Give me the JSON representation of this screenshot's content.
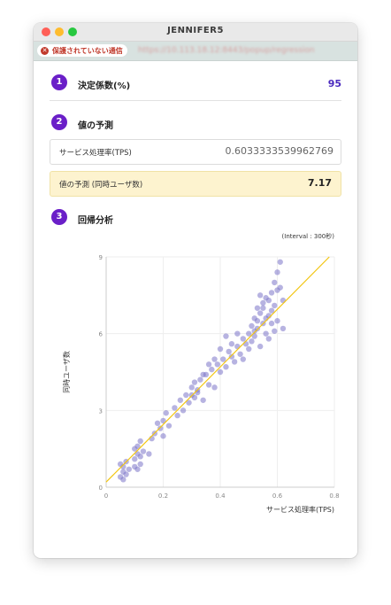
{
  "window": {
    "title": "JENNIFER5",
    "insecure_label": "保護されていない通信",
    "url": "https://10.113.18.12:8443/popup/regression"
  },
  "sections": {
    "r2": {
      "number": "1",
      "title": "決定係数(%)",
      "value": "95"
    },
    "prediction": {
      "number": "2",
      "title": "値の予測",
      "input_label": "サービス処理率(TPS)",
      "input_value": "0.6033333539962769",
      "result_label": "値の予測 (同時ユーザ数)",
      "result_value": "7.17"
    },
    "regression": {
      "number": "3",
      "title": "回帰分析",
      "interval": "(Interval : 300秒)"
    }
  },
  "chart_data": {
    "type": "scatter",
    "xlabel": "サービス処理率(TPS)",
    "ylabel": "同時ユーザ数",
    "xlim": [
      0,
      0.8
    ],
    "ylim": [
      0,
      9
    ],
    "xticks": [
      "0",
      "0.2",
      "0.4",
      "0.6",
      "0.8"
    ],
    "yticks": [
      "0",
      "3",
      "6",
      "9"
    ],
    "grid": true,
    "point_color": "#7b74c8",
    "line_color": "#f2c511",
    "regression_line": {
      "x": [
        0,
        0.8
      ],
      "y": [
        0.2,
        9.2
      ]
    },
    "points": [
      [
        0.05,
        0.4
      ],
      [
        0.06,
        0.6
      ],
      [
        0.06,
        0.8
      ],
      [
        0.07,
        0.5
      ],
      [
        0.05,
        0.9
      ],
      [
        0.07,
        1.0
      ],
      [
        0.06,
        0.3
      ],
      [
        0.08,
        0.7
      ],
      [
        0.1,
        0.8
      ],
      [
        0.1,
        1.1
      ],
      [
        0.11,
        1.3
      ],
      [
        0.11,
        1.6
      ],
      [
        0.12,
        1.2
      ],
      [
        0.12,
        0.9
      ],
      [
        0.1,
        1.5
      ],
      [
        0.11,
        0.7
      ],
      [
        0.12,
        1.8
      ],
      [
        0.13,
        1.4
      ],
      [
        0.15,
        1.3
      ],
      [
        0.16,
        1.9
      ],
      [
        0.17,
        2.1
      ],
      [
        0.18,
        2.5
      ],
      [
        0.19,
        2.3
      ],
      [
        0.2,
        2.6
      ],
      [
        0.2,
        2.0
      ],
      [
        0.21,
        2.9
      ],
      [
        0.22,
        2.4
      ],
      [
        0.24,
        3.1
      ],
      [
        0.25,
        2.8
      ],
      [
        0.26,
        3.4
      ],
      [
        0.27,
        3.0
      ],
      [
        0.28,
        3.6
      ],
      [
        0.29,
        3.3
      ],
      [
        0.3,
        3.9
      ],
      [
        0.31,
        3.5
      ],
      [
        0.31,
        4.1
      ],
      [
        0.32,
        3.7
      ],
      [
        0.33,
        4.2
      ],
      [
        0.34,
        3.4
      ],
      [
        0.35,
        4.4
      ],
      [
        0.36,
        4.0
      ],
      [
        0.37,
        4.6
      ],
      [
        0.38,
        3.9
      ],
      [
        0.39,
        4.8
      ],
      [
        0.4,
        4.5
      ],
      [
        0.41,
        5.0
      ],
      [
        0.42,
        4.7
      ],
      [
        0.43,
        5.3
      ],
      [
        0.44,
        5.1
      ],
      [
        0.45,
        4.9
      ],
      [
        0.46,
        5.5
      ],
      [
        0.47,
        5.2
      ],
      [
        0.48,
        5.8
      ],
      [
        0.48,
        5.0
      ],
      [
        0.49,
        5.6
      ],
      [
        0.5,
        6.0
      ],
      [
        0.5,
        5.4
      ],
      [
        0.51,
        6.3
      ],
      [
        0.51,
        5.7
      ],
      [
        0.52,
        6.6
      ],
      [
        0.52,
        5.9
      ],
      [
        0.53,
        7.0
      ],
      [
        0.53,
        6.2
      ],
      [
        0.54,
        6.8
      ],
      [
        0.54,
        5.5
      ],
      [
        0.55,
        7.2
      ],
      [
        0.55,
        6.4
      ],
      [
        0.56,
        6.0
      ],
      [
        0.56,
        7.4
      ],
      [
        0.57,
        6.7
      ],
      [
        0.57,
        5.8
      ],
      [
        0.58,
        7.6
      ],
      [
        0.58,
        6.9
      ],
      [
        0.59,
        8.0
      ],
      [
        0.59,
        7.1
      ],
      [
        0.6,
        8.4
      ],
      [
        0.6,
        6.5
      ],
      [
        0.61,
        7.8
      ],
      [
        0.61,
        8.8
      ],
      [
        0.62,
        7.3
      ],
      [
        0.62,
        6.2
      ],
      [
        0.55,
        7.0
      ],
      [
        0.53,
        6.5
      ],
      [
        0.57,
        7.3
      ],
      [
        0.56,
        6.6
      ],
      [
        0.58,
        6.4
      ],
      [
        0.54,
        7.5
      ],
      [
        0.59,
        6.1
      ],
      [
        0.6,
        7.7
      ],
      [
        0.52,
        6.1
      ],
      [
        0.46,
        6.0
      ],
      [
        0.44,
        5.6
      ],
      [
        0.42,
        5.9
      ],
      [
        0.4,
        5.4
      ],
      [
        0.38,
        5.0
      ],
      [
        0.36,
        4.8
      ],
      [
        0.34,
        4.4
      ],
      [
        0.32,
        3.8
      ],
      [
        0.3,
        3.6
      ]
    ]
  }
}
